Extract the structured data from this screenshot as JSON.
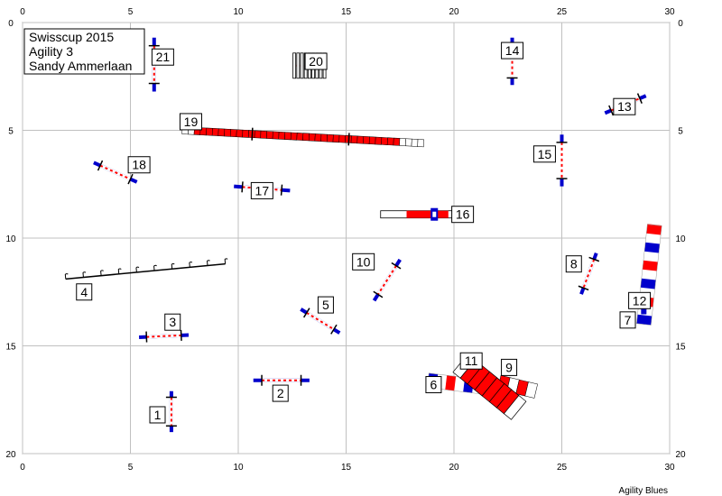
{
  "title_lines": [
    "Swisscup 2015",
    "Agility 3",
    "Sandy Ammerlaan"
  ],
  "credit": "Agility Blues",
  "field": {
    "x_range": [
      0,
      30
    ],
    "y_range": [
      0,
      20
    ],
    "tick_step": 5,
    "x_ticks": [
      "0",
      "5",
      "10",
      "15",
      "20",
      "25",
      "30"
    ],
    "y_ticks": [
      "0",
      "5",
      "10",
      "15",
      "20"
    ]
  },
  "colors": {
    "grid": "#c0c0c0",
    "blue": "#0000cc",
    "red": "#ff0000",
    "white": "#ffffff",
    "black": "#000000"
  },
  "obstacles": [
    {
      "number": "1",
      "type": "jump",
      "x1": 6.9,
      "y1": 17.1,
      "x2": 6.9,
      "y2": 19.0,
      "label_x": 5.9,
      "label_y": 18.2
    },
    {
      "number": "2",
      "type": "jump",
      "x1": 10.7,
      "y1": 16.6,
      "x2": 13.3,
      "y2": 16.6,
      "label_x": 11.6,
      "label_y": 17.2
    },
    {
      "number": "3",
      "type": "jump",
      "x1": 5.4,
      "y1": 14.6,
      "x2": 7.7,
      "y2": 14.5,
      "label_x": 6.6,
      "label_y": 13.9
    },
    {
      "number": "4",
      "type": "wall",
      "x1": 2.0,
      "y1": 11.9,
      "x2": 9.4,
      "y2": 11.2,
      "label_x": 2.5,
      "label_y": 12.5
    },
    {
      "number": "5",
      "type": "jump",
      "x1": 12.9,
      "y1": 13.3,
      "x2": 14.7,
      "y2": 14.4,
      "label_x": 13.7,
      "label_y": 13.1
    },
    {
      "number": "6",
      "type": "tunnel",
      "x1": 18.8,
      "y1": 16.6,
      "x2": 21.3,
      "y2": 16.9,
      "label_x": 18.7,
      "label_y": 16.8
    },
    {
      "number": "7",
      "type": "tunnel",
      "x1": 28.8,
      "y1": 14.0,
      "x2": 29.3,
      "y2": 9.4,
      "label_x": 27.7,
      "label_y": 13.8
    },
    {
      "number": "8",
      "type": "jump",
      "x1": 26.6,
      "y1": 10.7,
      "x2": 25.9,
      "y2": 12.6,
      "label_x": 25.2,
      "label_y": 11.2
    },
    {
      "number": "9",
      "type": "tunnel",
      "x1": 22.1,
      "y1": 16.7,
      "x2": 23.8,
      "y2": 17.1,
      "label_x": 22.2,
      "label_y": 16.0
    },
    {
      "number": "10",
      "type": "jump",
      "x1": 17.5,
      "y1": 11.0,
      "x2": 16.3,
      "y2": 12.9,
      "label_x": 15.3,
      "label_y": 11.1
    },
    {
      "number": "11",
      "type": "table",
      "x1": 20.3,
      "y1": 15.8,
      "x2": 23.0,
      "y2": 18.0,
      "label_x": 20.3,
      "label_y": 15.7
    },
    {
      "number": "12",
      "type": "jump",
      "x1": 28.8,
      "y1": 13.2,
      "x2": 28.8,
      "y2": 13.2,
      "label_x": 28.1,
      "label_y": 12.9
    },
    {
      "number": "13",
      "type": "jump",
      "x1": 27.0,
      "y1": 4.2,
      "x2": 28.9,
      "y2": 3.4,
      "label_x": 27.4,
      "label_y": 3.9
    },
    {
      "number": "14",
      "type": "jump",
      "x1": 22.7,
      "y1": 0.7,
      "x2": 22.7,
      "y2": 2.9,
      "label_x": 22.2,
      "label_y": 1.3
    },
    {
      "number": "15",
      "type": "jump",
      "x1": 25.0,
      "y1": 5.2,
      "x2": 25.0,
      "y2": 7.6,
      "label_x": 23.7,
      "label_y": 6.1
    },
    {
      "number": "16",
      "type": "tire",
      "x1": 16.6,
      "y1": 8.9,
      "x2": 20.9,
      "y2": 8.9,
      "label_x": 19.9,
      "label_y": 8.9
    },
    {
      "number": "17",
      "type": "jump",
      "x1": 9.8,
      "y1": 7.6,
      "x2": 12.4,
      "y2": 7.8,
      "label_x": 10.6,
      "label_y": 7.8
    },
    {
      "number": "18",
      "type": "jump",
      "x1": 3.3,
      "y1": 6.5,
      "x2": 5.3,
      "y2": 7.4,
      "label_x": 4.9,
      "label_y": 6.6
    },
    {
      "number": "19",
      "type": "dogwalk",
      "x1": 7.4,
      "y1": 5.0,
      "x2": 18.6,
      "y2": 5.6,
      "label_x": 7.3,
      "label_y": 4.6
    },
    {
      "number": "20",
      "type": "weave",
      "x1": 12.6,
      "y1": 2.0,
      "x2": 14.0,
      "y2": 2.0,
      "label_x": 13.1,
      "label_y": 1.8
    },
    {
      "number": "21",
      "type": "jump",
      "x1": 6.1,
      "y1": 0.7,
      "x2": 6.1,
      "y2": 3.2,
      "label_x": 6.0,
      "label_y": 1.6
    }
  ]
}
